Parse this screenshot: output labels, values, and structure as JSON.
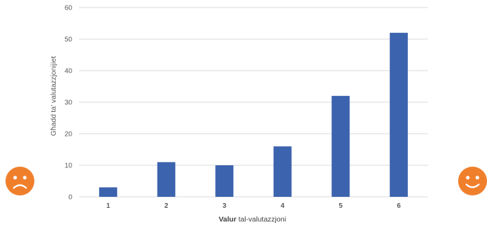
{
  "chart_data": {
    "type": "bar",
    "categories": [
      "1",
      "2",
      "3",
      "4",
      "5",
      "6"
    ],
    "values": [
      3,
      11,
      10,
      16,
      32,
      52
    ],
    "ylabel": "Għadd ta' valutazzjonijiet",
    "xlabel_bold": "Valur",
    "xlabel_rest": " tal-valutazzjoni",
    "ylim": [
      0,
      60
    ],
    "yticks": [
      0,
      10,
      20,
      30,
      40,
      50,
      60
    ],
    "grid": true,
    "bar_color": "#3c63ae",
    "grid_color": "#d9d9d9"
  },
  "decorations": {
    "left_icon": "sad-face-icon",
    "right_icon": "happy-face-icon",
    "icon_color": "#f07f2c"
  }
}
